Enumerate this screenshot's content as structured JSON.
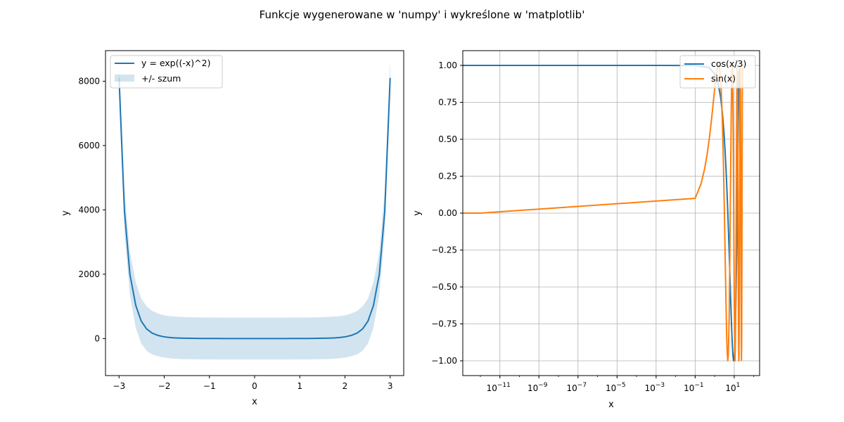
{
  "figure": {
    "title": "Funkcje wygenerowane w 'numpy' i wykreślone w 'matplotlib'"
  },
  "chart_data": [
    {
      "type": "line",
      "title": "",
      "xlabel": "x",
      "ylabel": "y",
      "xlim": [
        -3.3,
        3.3
      ],
      "ylim": [
        -1150,
        8950
      ],
      "x_ticks": [
        -3,
        -2,
        -1,
        0,
        1,
        2,
        3
      ],
      "x_tick_labels": [
        "−3",
        "−2",
        "−1",
        "0",
        "1",
        "2",
        "3"
      ],
      "y_ticks": [
        0,
        2000,
        4000,
        6000,
        8000
      ],
      "y_tick_labels": [
        "0",
        "2000",
        "4000",
        "6000",
        "8000"
      ],
      "grid": false,
      "legend": "top-left",
      "series": [
        {
          "name": "y = exp((-x)^2)",
          "kind": "line",
          "color": "#1f77b4",
          "x": [
            -3.0,
            -2.88,
            -2.76,
            -2.63,
            -2.51,
            -2.39,
            -2.27,
            -2.14,
            -2.02,
            -1.9,
            -1.78,
            -1.65,
            -1.53,
            -1.41,
            -1.29,
            -1.16,
            -1.04,
            -0.92,
            -0.8,
            -0.67,
            -0.55,
            -0.43,
            -0.31,
            -0.18,
            -0.06,
            0.06,
            0.18,
            0.31,
            0.43,
            0.55,
            0.67,
            0.8,
            0.92,
            1.04,
            1.16,
            1.29,
            1.41,
            1.53,
            1.65,
            1.78,
            1.9,
            2.02,
            2.14,
            2.27,
            2.39,
            2.51,
            2.63,
            2.76,
            2.88,
            3.0
          ],
          "y": [
            8103,
            3950,
            2000,
            1030,
            545,
            300,
            172,
            98,
            59,
            37,
            23,
            15,
            10.4,
            7.3,
            5.3,
            3.9,
            2.9,
            2.3,
            1.9,
            1.6,
            1.4,
            1.2,
            1.1,
            1.03,
            1.0,
            1.0,
            1.03,
            1.1,
            1.2,
            1.4,
            1.6,
            1.9,
            2.3,
            2.9,
            3.9,
            5.3,
            7.3,
            10.4,
            15,
            23,
            37,
            59,
            98,
            172,
            300,
            545,
            1030,
            2000,
            3950,
            8103
          ]
        },
        {
          "name": "+/- szum",
          "kind": "band",
          "color": "#1f77b4",
          "opacity": 0.2,
          "x": [
            -3.0,
            -2.88,
            -2.76,
            -2.63,
            -2.51,
            -2.39,
            -2.27,
            -2.14,
            -2.02,
            -1.9,
            -1.78,
            -1.65,
            -1.53,
            -1.41,
            -1.29,
            -1.16,
            -1.04,
            -0.92,
            -0.8,
            -0.67,
            -0.55,
            -0.43,
            -0.31,
            -0.18,
            -0.06,
            0.06,
            0.18,
            0.31,
            0.43,
            0.55,
            0.67,
            0.8,
            0.92,
            1.04,
            1.16,
            1.29,
            1.41,
            1.53,
            1.65,
            1.78,
            1.9,
            2.02,
            2.14,
            2.27,
            2.39,
            2.51,
            2.63,
            2.76,
            2.88,
            3.0
          ],
          "upper": [
            8700,
            4600,
            2700,
            1750,
            1250,
            1000,
            860,
            780,
            730,
            700,
            685,
            675,
            668,
            663,
            660,
            657,
            655,
            654,
            653,
            652,
            651,
            651,
            650,
            650,
            650,
            650,
            650,
            650,
            651,
            651,
            652,
            653,
            654,
            655,
            657,
            660,
            663,
            668,
            675,
            685,
            700,
            730,
            780,
            860,
            1000,
            1250,
            1750,
            2700,
            4600,
            8700
          ],
          "lower": [
            7500,
            3300,
            1350,
            330,
            -150,
            -380,
            -490,
            -550,
            -590,
            -610,
            -625,
            -635,
            -640,
            -643,
            -645,
            -647,
            -648,
            -648,
            -649,
            -649,
            -649,
            -650,
            -650,
            -650,
            -650,
            -650,
            -650,
            -650,
            -650,
            -649,
            -649,
            -649,
            -648,
            -648,
            -647,
            -645,
            -643,
            -640,
            -635,
            -625,
            -610,
            -590,
            -550,
            -490,
            -380,
            -150,
            330,
            1350,
            3300,
            7500
          ]
        }
      ]
    },
    {
      "type": "line",
      "title": "",
      "xlabel": "x",
      "ylabel": "y",
      "xscale": "log",
      "xlim_log10": [
        -12.9,
        2.3
      ],
      "ylim": [
        -1.1,
        1.1
      ],
      "x_tick_exponents": [
        -11,
        -9,
        -7,
        -5,
        -3,
        -1,
        1
      ],
      "x_tick_base": "10",
      "y_ticks": [
        -1.0,
        -0.75,
        -0.5,
        -0.25,
        0.0,
        0.25,
        0.5,
        0.75,
        1.0
      ],
      "y_tick_labels": [
        "−1.00",
        "−0.75",
        "−0.50",
        "−0.25",
        "0.00",
        "0.25",
        "0.50",
        "0.75",
        "1.00"
      ],
      "grid": true,
      "legend": "top-right",
      "series": [
        {
          "name": "cos(x/3)",
          "color": "#1f77b4",
          "x": [
            1e-13,
            1e-12,
            1e-09,
            1e-06,
            0.001,
            0.1,
            0.5,
            1,
            1.5,
            2,
            2.5,
            3,
            3.5,
            4,
            4.5,
            5,
            5.5,
            6,
            6.5,
            7,
            7.5,
            8,
            8.5,
            9,
            9.5,
            10,
            10.5,
            11,
            12,
            13,
            14,
            15,
            16,
            17,
            18,
            19,
            20
          ],
          "y": [
            1.0,
            1.0,
            1.0,
            1.0,
            1.0,
            0.9994,
            0.986,
            0.945,
            0.878,
            0.786,
            0.673,
            0.54,
            0.393,
            0.235,
            0.071,
            -0.096,
            -0.259,
            -0.416,
            -0.561,
            -0.691,
            -0.801,
            -0.889,
            -0.952,
            -0.99,
            -1.0,
            -0.982,
            -0.938,
            -0.867,
            -0.654,
            -0.371,
            -0.053,
            0.284,
            0.593,
            0.83,
            0.96,
            0.974,
            0.869
          ]
        },
        {
          "name": "sin(x)",
          "color": "#ff7f0e",
          "x": [
            1e-13,
            1e-12,
            0.1,
            0.2,
            0.3,
            0.4,
            0.5,
            0.6,
            0.7,
            0.8,
            0.9,
            1.0,
            1.2,
            1.4,
            1.6,
            1.8,
            2.0,
            2.2,
            2.4,
            2.6,
            2.8,
            3.0,
            3.2,
            3.4,
            3.6,
            3.8,
            4.0,
            4.2,
            4.4,
            4.7,
            5.0,
            5.5,
            6.0,
            6.5,
            7.0,
            7.5,
            7.85,
            8.5,
            9.0,
            9.5,
            10.0,
            10.5,
            11.0,
            11.5,
            12.0,
            12.5,
            13.0,
            13.5,
            14.1,
            14.5,
            15.0,
            15.5,
            16.0,
            16.5,
            17.0,
            17.3,
            17.8,
            18.3,
            18.85,
            19.5,
            20.0,
            20.4,
            21.0,
            21.5,
            22.0,
            22.5,
            23.0,
            23.5,
            24.0,
            24.5,
            25.0,
            25.5,
            26.0,
            26.5,
            27.0
          ],
          "y": [
            0.0,
            0.0,
            0.0998,
            0.199,
            0.296,
            0.389,
            0.479,
            0.565,
            0.644,
            0.717,
            0.783,
            0.841,
            0.932,
            0.985,
            0.9996,
            0.974,
            0.909,
            0.808,
            0.675,
            0.516,
            0.335,
            0.141,
            -0.058,
            -0.256,
            -0.443,
            -0.612,
            -0.757,
            -0.872,
            -0.952,
            -0.9999,
            -0.959,
            -0.706,
            -0.279,
            0.215,
            0.657,
            0.938,
            1.0,
            0.798,
            0.412,
            -0.075,
            -0.544,
            -0.88,
            -1.0,
            -0.875,
            -0.537,
            -0.066,
            0.42,
            0.804,
            0.999,
            0.935,
            0.65,
            0.206,
            -0.288,
            -0.712,
            -0.961,
            -1.0,
            -0.871,
            -0.508,
            0.0,
            0.609,
            0.913,
            1.0,
            0.837,
            0.467,
            -0.009,
            -0.488,
            -0.846,
            -0.997,
            -0.906,
            -0.592,
            -0.132,
            0.364,
            0.763,
            0.978,
            0.956
          ]
        }
      ]
    }
  ]
}
